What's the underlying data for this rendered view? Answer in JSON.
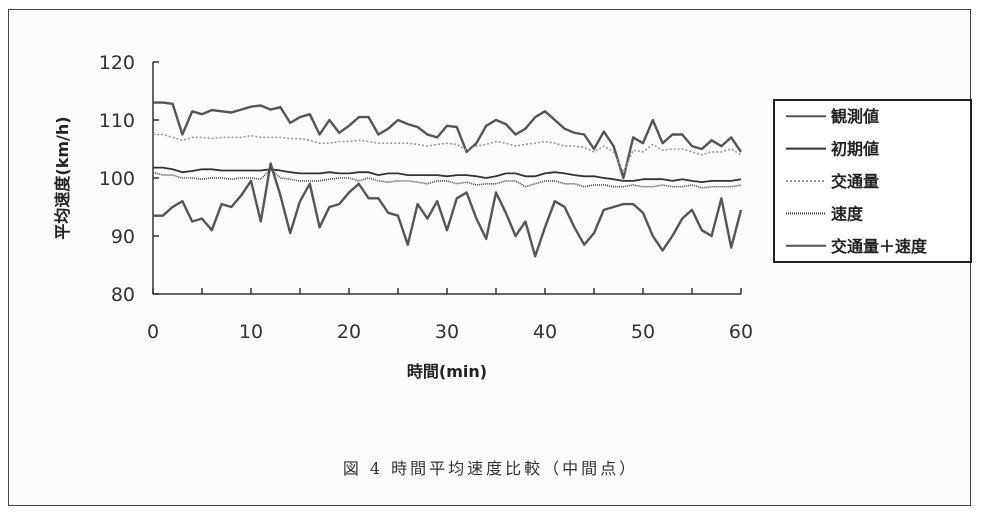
{
  "figure_caption": "図 4 時間平均速度比較（中間点）",
  "chart_data": {
    "type": "line",
    "title": "",
    "xlabel": "時間(min)",
    "ylabel": "平均速度(km/h)",
    "xlim": [
      0,
      60
    ],
    "ylim": [
      80,
      120
    ],
    "x_ticks": [
      0,
      10,
      20,
      30,
      40,
      50,
      60
    ],
    "y_ticks": [
      80,
      90,
      100,
      110,
      120
    ],
    "grid": false,
    "legend_position": "right",
    "x": [
      0,
      1,
      2,
      3,
      4,
      5,
      6,
      7,
      8,
      9,
      10,
      11,
      12,
      13,
      14,
      15,
      16,
      17,
      18,
      19,
      20,
      21,
      22,
      23,
      24,
      25,
      26,
      27,
      28,
      29,
      30,
      31,
      32,
      33,
      34,
      35,
      36,
      37,
      38,
      39,
      40,
      41,
      42,
      43,
      44,
      45,
      46,
      47,
      48,
      49,
      50,
      51,
      52,
      53,
      54,
      55,
      56,
      57,
      58,
      59,
      60
    ],
    "series": [
      {
        "name": "観測値",
        "color": "#555555",
        "dash": "",
        "values": [
          113,
          113,
          112.8,
          107.5,
          111.5,
          111,
          111.7,
          111.5,
          111.3,
          111.8,
          112.3,
          112.5,
          111.8,
          112.2,
          109.5,
          110.5,
          111,
          107.5,
          110,
          107.8,
          109,
          110.5,
          110.5,
          107.5,
          108.5,
          110,
          109.3,
          108.8,
          107.5,
          107,
          109,
          108.8,
          104.5,
          106,
          109,
          110,
          109.3,
          107.5,
          108.5,
          110.5,
          111.5,
          110,
          108.5,
          107.8,
          107.5,
          105,
          108,
          105.5,
          100,
          107,
          106,
          110,
          106,
          107.5,
          107.5,
          105.5,
          105,
          106.5,
          105.5,
          107,
          104.5
        ]
      },
      {
        "name": "初期値",
        "color": "#333333",
        "dash": "",
        "values": [
          101.8,
          101.8,
          101.5,
          101,
          101.2,
          101.5,
          101.5,
          101.3,
          101.3,
          101.3,
          101.3,
          101.3,
          101.5,
          101.3,
          101,
          100.8,
          100.8,
          100.8,
          101,
          100.8,
          100.8,
          101,
          101,
          100.5,
          100.8,
          100.8,
          100.5,
          100.5,
          100.5,
          100.5,
          100.3,
          100.5,
          100.5,
          100.3,
          100,
          100.3,
          100.8,
          100.8,
          100.3,
          100.3,
          100.8,
          101,
          100.8,
          100.5,
          100.3,
          100.3,
          100,
          99.8,
          99.5,
          99.5,
          99.8,
          99.8,
          99.8,
          99.5,
          99.8,
          99.5,
          99.3,
          99.5,
          99.5,
          99.5,
          99.8
        ]
      },
      {
        "name": "交通量",
        "color": "#999999",
        "dash": "2,2",
        "values": [
          107.5,
          107.5,
          107,
          106.5,
          107,
          107,
          106.8,
          107,
          107,
          107,
          107.3,
          107,
          107,
          107,
          106.8,
          106.8,
          106.5,
          106,
          106,
          106.3,
          106.3,
          106.5,
          106.3,
          106,
          106,
          106,
          106,
          105.8,
          105.5,
          105.8,
          106,
          105.8,
          104.8,
          105.5,
          105.8,
          106.3,
          106,
          105.5,
          105.8,
          106,
          106.3,
          106,
          105.5,
          105.5,
          105.3,
          104.5,
          105.5,
          104.5,
          101,
          104.8,
          104.5,
          105.8,
          104.8,
          105,
          105,
          104.5,
          104,
          104.5,
          104.5,
          105,
          104
        ]
      },
      {
        "name": "速度",
        "color": "#444444",
        "dash": "1,1",
        "values": [
          101,
          100.5,
          100.5,
          100,
          100,
          99.8,
          100,
          100,
          99.8,
          100,
          100,
          99.8,
          101.5,
          100,
          99.8,
          99.5,
          99.5,
          99.5,
          99.8,
          100,
          100,
          99.5,
          100,
          99.5,
          99.3,
          99.5,
          99.5,
          99.3,
          99,
          99.5,
          99.5,
          99,
          99.3,
          98.8,
          99,
          99,
          99.5,
          99.5,
          98.5,
          99,
          99.5,
          99.5,
          99,
          99,
          98.5,
          98.8,
          98.8,
          98.5,
          98.5,
          98.8,
          98.5,
          98.5,
          98.8,
          98.5,
          98.5,
          98.8,
          98.3,
          98.5,
          98.5,
          98.5,
          98.8
        ]
      },
      {
        "name": "交通量＋速度",
        "color": "#555555",
        "dash": "",
        "values": [
          93.5,
          93.5,
          95,
          96,
          92.5,
          93,
          91,
          95.5,
          95,
          97,
          99.5,
          92.5,
          102.5,
          97,
          90.5,
          96,
          99,
          91.5,
          95,
          95.5,
          97.5,
          99,
          96.5,
          96.5,
          94,
          93.5,
          88.5,
          95.5,
          93,
          96,
          91,
          96.5,
          97.5,
          93,
          89.5,
          97.5,
          94,
          90,
          92.5,
          86.5,
          91.5,
          96,
          95,
          91.5,
          88.5,
          90.5,
          94.5,
          95,
          95.5,
          95.5,
          94,
          90,
          87.5,
          90,
          93,
          94.5,
          91,
          90,
          96.5,
          88,
          94.5
        ]
      }
    ]
  }
}
